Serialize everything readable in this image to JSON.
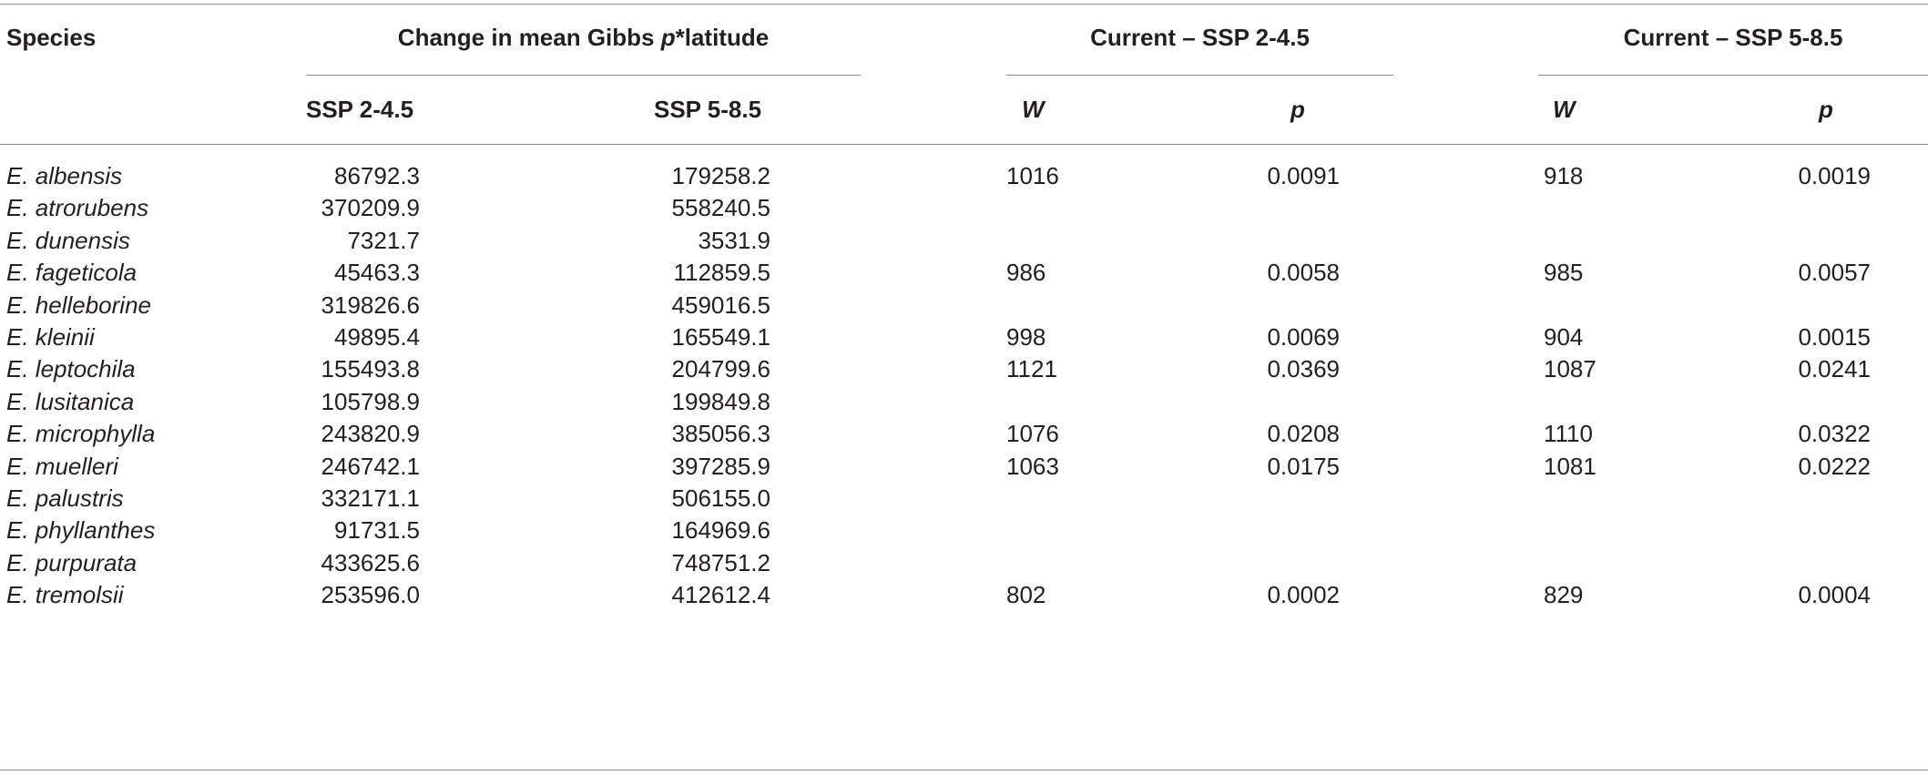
{
  "table": {
    "header": {
      "species": "Species",
      "change_group_prefix": "Change in mean Gibbs ",
      "change_group_var": "p",
      "change_group_suffix": "*latitude",
      "group_245": "Current – SSP 2-4.5",
      "group_585": "Current – SSP 5-8.5",
      "sub_ssp245": "SSP 2-4.5",
      "sub_ssp585": "SSP 5-8.5",
      "sub_w1": "W",
      "sub_p1": "p",
      "sub_w2": "W",
      "sub_p2": "p"
    },
    "rows": [
      {
        "species": "E. albensis",
        "ssp245": "86792.3",
        "ssp585": "179258.2",
        "w1": "1016",
        "p1": "0.0091",
        "w2": "918",
        "p2": "0.0019"
      },
      {
        "species": "E. atrorubens",
        "ssp245": "370209.9",
        "ssp585": "558240.5",
        "w1": "",
        "p1": "",
        "w2": "",
        "p2": ""
      },
      {
        "species": "E. dunensis",
        "ssp245": "7321.7",
        "ssp585": "3531.9",
        "w1": "",
        "p1": "",
        "w2": "",
        "p2": ""
      },
      {
        "species": "E. fageticola",
        "ssp245": "45463.3",
        "ssp585": "112859.5",
        "w1": "986",
        "p1": "0.0058",
        "w2": "985",
        "p2": "0.0057"
      },
      {
        "species": "E. helleborine",
        "ssp245": "319826.6",
        "ssp585": "459016.5",
        "w1": "",
        "p1": "",
        "w2": "",
        "p2": ""
      },
      {
        "species": "E. kleinii",
        "ssp245": "49895.4",
        "ssp585": "165549.1",
        "w1": "998",
        "p1": "0.0069",
        "w2": "904",
        "p2": "0.0015"
      },
      {
        "species": "E. leptochila",
        "ssp245": "155493.8",
        "ssp585": "204799.6",
        "w1": "1121",
        "p1": "0.0369",
        "w2": "1087",
        "p2": "0.0241"
      },
      {
        "species": "E. lusitanica",
        "ssp245": "105798.9",
        "ssp585": "199849.8",
        "w1": "",
        "p1": "",
        "w2": "",
        "p2": ""
      },
      {
        "species": "E. microphylla",
        "ssp245": "243820.9",
        "ssp585": "385056.3",
        "w1": "1076",
        "p1": "0.0208",
        "w2": "1110",
        "p2": "0.0322"
      },
      {
        "species": "E. muelleri",
        "ssp245": "246742.1",
        "ssp585": "397285.9",
        "w1": "1063",
        "p1": "0.0175",
        "w2": "1081",
        "p2": "0.0222"
      },
      {
        "species": "E. palustris",
        "ssp245": "332171.1",
        "ssp585": "506155.0",
        "w1": "",
        "p1": "",
        "w2": "",
        "p2": ""
      },
      {
        "species": "E. phyllanthes",
        "ssp245": "91731.5",
        "ssp585": "164969.6",
        "w1": "",
        "p1": "",
        "w2": "",
        "p2": ""
      },
      {
        "species": "E. purpurata",
        "ssp245": "433625.6",
        "ssp585": "748751.2",
        "w1": "",
        "p1": "",
        "w2": "",
        "p2": ""
      },
      {
        "species": "E. tremolsii",
        "ssp245": "253596.0",
        "ssp585": "412612.4",
        "w1": "802",
        "p1": "0.0002",
        "w2": "829",
        "p2": "0.0004"
      }
    ]
  }
}
